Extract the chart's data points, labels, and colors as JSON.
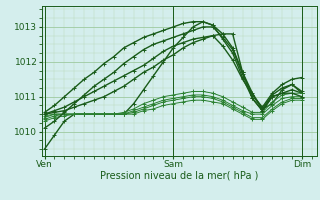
{
  "background_color": "#d4eeed",
  "grid_color_major": "#9ec9a0",
  "grid_color_minor": "#b8d9b8",
  "line_color_dark": "#1a5c1a",
  "line_color_med": "#2a8030",
  "xlabel": "Pression niveau de la mer( hPa )",
  "xtick_labels": [
    "Ven",
    "Sam",
    "Dim"
  ],
  "xtick_positions": [
    0,
    13,
    26
  ],
  "ytick_positions": [
    1010,
    1011,
    1012,
    1013
  ],
  "ylim": [
    1009.3,
    1013.6
  ],
  "xlim": [
    -0.3,
    27.5
  ],
  "lines": [
    {
      "y": [
        1009.5,
        1009.9,
        1010.3,
        1010.5,
        1010.5,
        1010.5,
        1010.5,
        1010.5,
        1010.5,
        1010.8,
        1011.2,
        1011.6,
        1012.0,
        1012.4,
        1012.7,
        1013.0,
        1013.15,
        1013.05,
        1012.8,
        1012.4,
        1011.7,
        1011.1,
        1010.65,
        1010.8,
        1011.2,
        1011.35,
        1011.1
      ],
      "color": "#1a5c1a",
      "lw": 1.0
    },
    {
      "y": [
        1010.5,
        1010.55,
        1010.6,
        1010.7,
        1010.8,
        1010.9,
        1011.0,
        1011.15,
        1011.3,
        1011.5,
        1011.7,
        1011.85,
        1012.05,
        1012.2,
        1012.4,
        1012.55,
        1012.65,
        1012.75,
        1012.8,
        1012.8,
        1011.7,
        1010.95,
        1010.6,
        1011.0,
        1011.1,
        1011.2,
        1011.1
      ],
      "color": "#1a5c1a",
      "lw": 1.0
    },
    {
      "y": [
        1010.45,
        1010.5,
        1010.5,
        1010.5,
        1010.5,
        1010.5,
        1010.5,
        1010.5,
        1010.55,
        1010.65,
        1010.8,
        1010.9,
        1011.0,
        1011.05,
        1011.1,
        1011.15,
        1011.15,
        1011.1,
        1011.0,
        1010.85,
        1010.7,
        1010.55,
        1010.55,
        1010.85,
        1011.05,
        1011.1,
        1011.1
      ],
      "color": "#2a8030",
      "lw": 0.7
    },
    {
      "y": [
        1010.4,
        1010.5,
        1010.5,
        1010.5,
        1010.5,
        1010.5,
        1010.5,
        1010.5,
        1010.5,
        1010.6,
        1010.7,
        1010.8,
        1010.9,
        1010.95,
        1011.0,
        1011.05,
        1011.05,
        1011.0,
        1010.9,
        1010.75,
        1010.6,
        1010.5,
        1010.5,
        1010.75,
        1010.95,
        1011.0,
        1011.0
      ],
      "color": "#2a8030",
      "lw": 0.7
    },
    {
      "y": [
        1010.35,
        1010.45,
        1010.5,
        1010.5,
        1010.5,
        1010.5,
        1010.5,
        1010.5,
        1010.5,
        1010.55,
        1010.65,
        1010.75,
        1010.85,
        1010.9,
        1010.95,
        1011.0,
        1011.0,
        1010.95,
        1010.85,
        1010.7,
        1010.55,
        1010.4,
        1010.4,
        1010.65,
        1010.85,
        1010.95,
        1010.95
      ],
      "color": "#2a8030",
      "lw": 0.7
    },
    {
      "y": [
        1010.3,
        1010.4,
        1010.45,
        1010.5,
        1010.5,
        1010.5,
        1010.5,
        1010.5,
        1010.5,
        1010.5,
        1010.6,
        1010.65,
        1010.75,
        1010.8,
        1010.85,
        1010.9,
        1010.9,
        1010.85,
        1010.8,
        1010.65,
        1010.5,
        1010.35,
        1010.35,
        1010.6,
        1010.8,
        1010.9,
        1010.9
      ],
      "color": "#2a8030",
      "lw": 0.7
    },
    {
      "y": [
        1010.5,
        1010.6,
        1010.7,
        1010.85,
        1011.0,
        1011.15,
        1011.3,
        1011.45,
        1011.6,
        1011.75,
        1011.9,
        1012.1,
        1012.3,
        1012.45,
        1012.55,
        1012.65,
        1012.7,
        1012.75,
        1012.45,
        1012.05,
        1011.5,
        1011.05,
        1010.7,
        1011.1,
        1011.35,
        1011.5,
        1011.55
      ],
      "color": "#1a5c1a",
      "lw": 1.0
    },
    {
      "y": [
        1010.55,
        1010.75,
        1011.0,
        1011.25,
        1011.5,
        1011.7,
        1011.95,
        1012.15,
        1012.4,
        1012.55,
        1012.7,
        1012.8,
        1012.9,
        1013.0,
        1013.1,
        1013.15,
        1013.15,
        1013.05,
        1012.65,
        1012.25,
        1011.55,
        1010.95,
        1010.6,
        1011.0,
        1011.1,
        1011.1,
        1011.0
      ],
      "color": "#1a5c1a",
      "lw": 1.0
    },
    {
      "y": [
        1010.1,
        1010.3,
        1010.55,
        1010.8,
        1011.05,
        1011.3,
        1011.5,
        1011.7,
        1011.95,
        1012.15,
        1012.35,
        1012.5,
        1012.6,
        1012.7,
        1012.8,
        1012.9,
        1013.0,
        1013.0,
        1012.7,
        1012.35,
        1011.65,
        1011.05,
        1010.65,
        1011.05,
        1011.25,
        1011.35,
        1011.15
      ],
      "color": "#1a5c1a",
      "lw": 1.0
    }
  ]
}
